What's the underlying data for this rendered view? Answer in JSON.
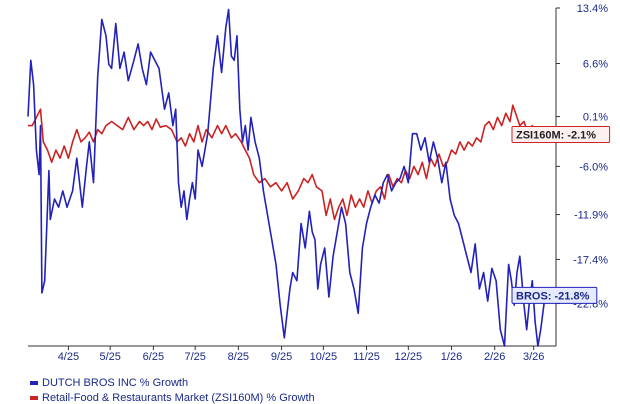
{
  "chart_data": {
    "type": "line",
    "x_unit": "date",
    "x_range": [
      "2025-03-17",
      "2026-03-31"
    ],
    "ylim": [
      -28.0,
      13.4
    ],
    "y_ticks": [
      13.4,
      6.6,
      0.1,
      -6.0,
      -11.9,
      -17.4,
      -22.8
    ],
    "y_tick_labels": [
      "13.4%",
      "6.6%",
      "0.1%",
      "-6.0%",
      "-11.9%",
      "-17.4%",
      "-22.8%"
    ],
    "x_ticks": [
      {
        "date": "2025-04-15",
        "label": "4/25"
      },
      {
        "date": "2025-05-15",
        "label": "5/25"
      },
      {
        "date": "2025-06-15",
        "label": "6/25"
      },
      {
        "date": "2025-07-15",
        "label": "7/25"
      },
      {
        "date": "2025-08-15",
        "label": "8/25"
      },
      {
        "date": "2025-09-15",
        "label": "9/25"
      },
      {
        "date": "2025-10-15",
        "label": "10/25"
      },
      {
        "date": "2025-11-15",
        "label": "11/25"
      },
      {
        "date": "2025-12-15",
        "label": "12/25"
      },
      {
        "date": "2026-01-15",
        "label": "1/26"
      },
      {
        "date": "2026-02-15",
        "label": "2/26"
      },
      {
        "date": "2026-03-15",
        "label": "3/26"
      }
    ],
    "grid": false,
    "legend_position": "bottom-left",
    "series": [
      {
        "name": "DUTCH BROS INC % Growth",
        "color": "#2222bb",
        "end_label": "BROS: -21.8%",
        "points": [
          [
            "2025-03-17",
            0.1
          ],
          [
            "2025-03-19",
            7.0
          ],
          [
            "2025-03-21",
            4.0
          ],
          [
            "2025-03-23",
            -4.0
          ],
          [
            "2025-03-25",
            -7.0
          ],
          [
            "2025-03-26",
            -1.0
          ],
          [
            "2025-03-27",
            -21.5
          ],
          [
            "2025-03-29",
            -20.0
          ],
          [
            "2025-04-01",
            -6.5
          ],
          [
            "2025-04-02",
            -12.5
          ],
          [
            "2025-04-05",
            -10.0
          ],
          [
            "2025-04-08",
            -11.0
          ],
          [
            "2025-04-11",
            -9.0
          ],
          [
            "2025-04-14",
            -11.0
          ],
          [
            "2025-04-18",
            -9.0
          ],
          [
            "2025-04-21",
            -5.0
          ],
          [
            "2025-04-25",
            -11.0
          ],
          [
            "2025-04-28",
            -6.0
          ],
          [
            "2025-04-30",
            -3.0
          ],
          [
            "2025-05-03",
            -8.0
          ],
          [
            "2025-05-06",
            5.0
          ],
          [
            "2025-05-09",
            12.0
          ],
          [
            "2025-05-12",
            10.0
          ],
          [
            "2025-05-14",
            6.5
          ],
          [
            "2025-05-16",
            6.0
          ],
          [
            "2025-05-19",
            11.5
          ],
          [
            "2025-05-22",
            6.0
          ],
          [
            "2025-05-25",
            8.0
          ],
          [
            "2025-05-28",
            4.5
          ],
          [
            "2025-06-01",
            7.0
          ],
          [
            "2025-06-04",
            9.0
          ],
          [
            "2025-06-07",
            6.0
          ],
          [
            "2025-06-10",
            4.0
          ],
          [
            "2025-06-13",
            8.0
          ],
          [
            "2025-06-16",
            7.0
          ],
          [
            "2025-06-19",
            6.0
          ],
          [
            "2025-06-23",
            1.0
          ],
          [
            "2025-06-26",
            3.0
          ],
          [
            "2025-06-29",
            -1.0
          ],
          [
            "2025-07-01",
            1.0
          ],
          [
            "2025-07-03",
            -8.0
          ],
          [
            "2025-07-05",
            -11.0
          ],
          [
            "2025-07-07",
            -9.0
          ],
          [
            "2025-07-09",
            -12.5
          ],
          [
            "2025-07-11",
            -10.0
          ],
          [
            "2025-07-13",
            -8.0
          ],
          [
            "2025-07-15",
            -10.0
          ],
          [
            "2025-07-17",
            -4.0
          ],
          [
            "2025-07-20",
            -6.0
          ],
          [
            "2025-07-24",
            -2.0
          ],
          [
            "2025-07-28",
            6.0
          ],
          [
            "2025-07-31",
            10.0
          ],
          [
            "2025-08-03",
            5.5
          ],
          [
            "2025-08-06",
            11.0
          ],
          [
            "2025-08-08",
            13.2
          ],
          [
            "2025-08-10",
            7.5
          ],
          [
            "2025-08-12",
            7.0
          ],
          [
            "2025-08-14",
            10.0
          ],
          [
            "2025-08-16",
            1.0
          ],
          [
            "2025-08-18",
            -3.0
          ],
          [
            "2025-08-20",
            -1.0
          ],
          [
            "2025-08-22",
            -4.0
          ],
          [
            "2025-08-24",
            0.0
          ],
          [
            "2025-08-27",
            -3.0
          ],
          [
            "2025-08-30",
            -5.0
          ],
          [
            "2025-09-02",
            -9.0
          ],
          [
            "2025-09-05",
            -12.0
          ],
          [
            "2025-09-08",
            -15.0
          ],
          [
            "2025-09-11",
            -18.0
          ],
          [
            "2025-09-14",
            -23.0
          ],
          [
            "2025-09-17",
            -27.0
          ],
          [
            "2025-09-19",
            -24.0
          ],
          [
            "2025-09-21",
            -21.0
          ],
          [
            "2025-09-23",
            -19.0
          ],
          [
            "2025-09-26",
            -20.0
          ],
          [
            "2025-09-29",
            -13.0
          ],
          [
            "2025-10-02",
            -16.0
          ],
          [
            "2025-10-05",
            -11.5
          ],
          [
            "2025-10-07",
            -14.0
          ],
          [
            "2025-10-09",
            -15.0
          ],
          [
            "2025-10-11",
            -21.0
          ],
          [
            "2025-10-13",
            -18.0
          ],
          [
            "2025-10-16",
            -16.0
          ],
          [
            "2025-10-19",
            -22.0
          ],
          [
            "2025-10-22",
            -17.0
          ],
          [
            "2025-10-25",
            -14.0
          ],
          [
            "2025-10-28",
            -11.0
          ],
          [
            "2025-10-31",
            -13.0
          ],
          [
            "2025-11-03",
            -19.0
          ],
          [
            "2025-11-06",
            -21.0
          ],
          [
            "2025-11-09",
            -24.0
          ],
          [
            "2025-11-12",
            -16.0
          ],
          [
            "2025-11-15",
            -13.0
          ],
          [
            "2025-11-18",
            -11.0
          ],
          [
            "2025-11-21",
            -9.5
          ],
          [
            "2025-11-24",
            -10.5
          ],
          [
            "2025-11-27",
            -8.0
          ],
          [
            "2025-11-30",
            -7.0
          ],
          [
            "2025-12-03",
            -9.0
          ],
          [
            "2025-12-06",
            -8.0
          ],
          [
            "2025-12-09",
            -7.5
          ],
          [
            "2025-12-12",
            -6.0
          ],
          [
            "2025-12-15",
            -8.0
          ],
          [
            "2025-12-18",
            -2.0
          ],
          [
            "2025-12-21",
            -2.0
          ],
          [
            "2025-12-24",
            -4.0
          ],
          [
            "2025-12-27",
            -2.5
          ],
          [
            "2025-12-30",
            -5.5
          ],
          [
            "2026-01-02",
            -3.0
          ],
          [
            "2026-01-05",
            -5.0
          ],
          [
            "2026-01-08",
            -8.0
          ],
          [
            "2026-01-11",
            -5.5
          ],
          [
            "2026-01-14",
            -10.0
          ],
          [
            "2026-01-17",
            -12.0
          ],
          [
            "2026-01-20",
            -13.0
          ],
          [
            "2026-01-23",
            -15.0
          ],
          [
            "2026-01-26",
            -17.0
          ],
          [
            "2026-01-29",
            -19.0
          ],
          [
            "2026-02-01",
            -15.5
          ],
          [
            "2026-02-04",
            -21.0
          ],
          [
            "2026-02-07",
            -19.0
          ],
          [
            "2026-02-10",
            -22.5
          ],
          [
            "2026-02-13",
            -18.5
          ],
          [
            "2026-02-16",
            -20.0
          ],
          [
            "2026-02-19",
            -26.0
          ],
          [
            "2026-02-22",
            -28.0
          ],
          [
            "2026-02-25",
            -18.0
          ],
          [
            "2026-02-27",
            -20.0
          ],
          [
            "2026-03-01",
            -23.0
          ],
          [
            "2026-03-03",
            -19.0
          ],
          [
            "2026-03-05",
            -17.0
          ],
          [
            "2026-03-08",
            -23.0
          ],
          [
            "2026-03-10",
            -26.0
          ],
          [
            "2026-03-12",
            -22.5
          ],
          [
            "2026-03-14",
            -20.0
          ],
          [
            "2026-03-16",
            -25.0
          ],
          [
            "2026-03-18",
            -28.0
          ],
          [
            "2026-03-20",
            -26.0
          ],
          [
            "2026-03-23",
            -22.0
          ],
          [
            "2026-03-25",
            -21.8
          ]
        ]
      },
      {
        "name": "Retail-Food & Restaurants Market (ZSI160M) % Growth",
        "color": "#cc2222",
        "end_label": "ZSI160M: -2.1%",
        "points": [
          [
            "2025-03-17",
            -1.0
          ],
          [
            "2025-03-20",
            -1.0
          ],
          [
            "2025-03-23",
            0.0
          ],
          [
            "2025-03-26",
            1.0
          ],
          [
            "2025-03-28",
            -3.0
          ],
          [
            "2025-03-31",
            -4.0
          ],
          [
            "2025-04-03",
            -5.5
          ],
          [
            "2025-04-06",
            -4.0
          ],
          [
            "2025-04-09",
            -5.0
          ],
          [
            "2025-04-12",
            -3.5
          ],
          [
            "2025-04-15",
            -5.0
          ],
          [
            "2025-04-18",
            -3.0
          ],
          [
            "2025-04-21",
            -1.5
          ],
          [
            "2025-04-24",
            -3.0
          ],
          [
            "2025-04-27",
            -2.5
          ],
          [
            "2025-04-30",
            -1.8
          ],
          [
            "2025-05-03",
            -3.0
          ],
          [
            "2025-05-06",
            -1.5
          ],
          [
            "2025-05-09",
            -2.0
          ],
          [
            "2025-05-12",
            -1.0
          ],
          [
            "2025-05-16",
            -0.5
          ],
          [
            "2025-05-20",
            -1.0
          ],
          [
            "2025-05-24",
            -1.5
          ],
          [
            "2025-05-28",
            0.0
          ],
          [
            "2025-06-01",
            -1.5
          ],
          [
            "2025-06-05",
            -0.5
          ],
          [
            "2025-06-08",
            -1.0
          ],
          [
            "2025-06-11",
            -0.5
          ],
          [
            "2025-06-14",
            -1.5
          ],
          [
            "2025-06-17",
            -0.2
          ],
          [
            "2025-06-20",
            -1.2
          ],
          [
            "2025-06-24",
            -1.0
          ],
          [
            "2025-06-28",
            -1.5
          ],
          [
            "2025-07-02",
            -3.0
          ],
          [
            "2025-07-05",
            -2.5
          ],
          [
            "2025-07-08",
            -3.5
          ],
          [
            "2025-07-11",
            -2.0
          ],
          [
            "2025-07-14",
            -3.0
          ],
          [
            "2025-07-17",
            -1.0
          ],
          [
            "2025-07-20",
            -3.0
          ],
          [
            "2025-07-23",
            -1.5
          ],
          [
            "2025-07-27",
            -2.5
          ],
          [
            "2025-07-31",
            -1.0
          ],
          [
            "2025-08-03",
            -2.0
          ],
          [
            "2025-08-06",
            -1.0
          ],
          [
            "2025-08-10",
            -2.5
          ],
          [
            "2025-08-13",
            -2.0
          ],
          [
            "2025-08-17",
            -3.0
          ],
          [
            "2025-08-20",
            -4.0
          ],
          [
            "2025-08-23",
            -5.0
          ],
          [
            "2025-08-26",
            -7.0
          ],
          [
            "2025-08-30",
            -8.0
          ],
          [
            "2025-09-03",
            -7.5
          ],
          [
            "2025-09-07",
            -8.5
          ],
          [
            "2025-09-11",
            -8.0
          ],
          [
            "2025-09-15",
            -9.0
          ],
          [
            "2025-09-19",
            -8.0
          ],
          [
            "2025-09-23",
            -10.0
          ],
          [
            "2025-09-27",
            -9.0
          ],
          [
            "2025-10-01",
            -7.5
          ],
          [
            "2025-10-04",
            -8.0
          ],
          [
            "2025-10-07",
            -7.0
          ],
          [
            "2025-10-10",
            -8.5
          ],
          [
            "2025-10-14",
            -9.0
          ],
          [
            "2025-10-17",
            -12.0
          ],
          [
            "2025-10-20",
            -10.0
          ],
          [
            "2025-10-23",
            -12.5
          ],
          [
            "2025-10-26",
            -11.0
          ],
          [
            "2025-10-29",
            -10.0
          ],
          [
            "2025-11-01",
            -12.0
          ],
          [
            "2025-11-04",
            -9.5
          ],
          [
            "2025-11-07",
            -11.0
          ],
          [
            "2025-11-10",
            -10.0
          ],
          [
            "2025-11-13",
            -11.0
          ],
          [
            "2025-11-16",
            -9.0
          ],
          [
            "2025-11-19",
            -10.5
          ],
          [
            "2025-11-22",
            -9.0
          ],
          [
            "2025-11-25",
            -8.5
          ],
          [
            "2025-11-28",
            -10.0
          ],
          [
            "2025-12-01",
            -7.0
          ],
          [
            "2025-12-04",
            -8.5
          ],
          [
            "2025-12-07",
            -7.5
          ],
          [
            "2025-12-10",
            -8.0
          ],
          [
            "2025-12-13",
            -6.5
          ],
          [
            "2025-12-16",
            -7.5
          ],
          [
            "2025-12-19",
            -6.0
          ],
          [
            "2025-12-22",
            -7.0
          ],
          [
            "2025-12-25",
            -5.5
          ],
          [
            "2025-12-28",
            -7.5
          ],
          [
            "2025-12-31",
            -5.0
          ],
          [
            "2026-01-03",
            -6.0
          ],
          [
            "2026-01-06",
            -4.5
          ],
          [
            "2026-01-09",
            -6.0
          ],
          [
            "2026-01-12",
            -5.5
          ],
          [
            "2026-01-15",
            -4.0
          ],
          [
            "2026-01-18",
            -4.5
          ],
          [
            "2026-01-21",
            -3.0
          ],
          [
            "2026-01-24",
            -4.0
          ],
          [
            "2026-01-27",
            -3.0
          ],
          [
            "2026-01-30",
            -3.5
          ],
          [
            "2026-02-02",
            -2.5
          ],
          [
            "2026-02-05",
            -3.0
          ],
          [
            "2026-02-08",
            -1.0
          ],
          [
            "2026-02-11",
            -0.5
          ],
          [
            "2026-02-14",
            -1.5
          ],
          [
            "2026-02-17",
            0.0
          ],
          [
            "2026-02-20",
            -1.0
          ],
          [
            "2026-02-23",
            0.5
          ],
          [
            "2026-02-26",
            -0.5
          ],
          [
            "2026-02-28",
            1.5
          ],
          [
            "2026-03-02",
            0.5
          ],
          [
            "2026-03-05",
            -1.0
          ],
          [
            "2026-03-08",
            -0.5
          ],
          [
            "2026-03-11",
            -2.0
          ],
          [
            "2026-03-14",
            -1.0
          ],
          [
            "2026-03-17",
            -2.5
          ],
          [
            "2026-03-20",
            -1.5
          ],
          [
            "2026-03-23",
            -2.8
          ],
          [
            "2026-03-25",
            -2.1
          ]
        ]
      }
    ]
  }
}
